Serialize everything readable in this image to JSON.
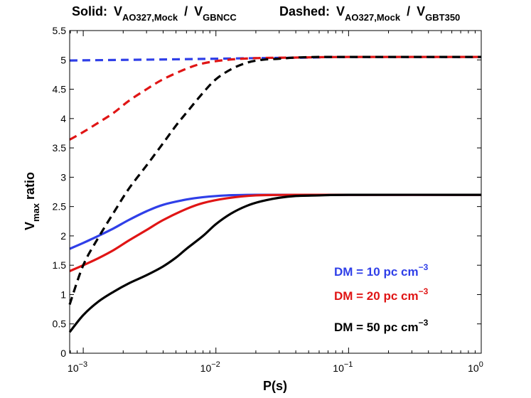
{
  "chart_data": {
    "type": "line",
    "x_scale": "log",
    "xlim": [
      0.00079,
      1
    ],
    "ylim": [
      0,
      5.5
    ],
    "titles": {
      "solid_label": "Solid:",
      "solid_V1": "V",
      "solid_V1_sub": "AO327,Mock",
      "solid_slash": "/",
      "solid_V2": "V",
      "solid_V2_sub": "GBNCC",
      "dashed_label": "Dashed:",
      "dashed_V1": "V",
      "dashed_V1_sub": "AO327,Mock",
      "dashed_slash": "/",
      "dashed_V2": "V",
      "dashed_V2_sub": "GBT350"
    },
    "xlabel": "P(s)",
    "ylabel_main": "V",
    "ylabel_sub": "max",
    "ylabel_rest": " ratio",
    "yticks": [
      {
        "value": 0,
        "label": "0"
      },
      {
        "value": 0.5,
        "label": "0.5"
      },
      {
        "value": 1,
        "label": "1"
      },
      {
        "value": 1.5,
        "label": "1.5"
      },
      {
        "value": 2,
        "label": "2"
      },
      {
        "value": 2.5,
        "label": "2.5"
      },
      {
        "value": 3,
        "label": "3"
      },
      {
        "value": 3.5,
        "label": "3.5"
      },
      {
        "value": 4,
        "label": "4"
      },
      {
        "value": 4.5,
        "label": "4.5"
      },
      {
        "value": 5,
        "label": "5"
      },
      {
        "value": 5.5,
        "label": "5.5"
      }
    ],
    "xticks": [
      {
        "value": 0.001,
        "base": "10",
        "exp": "−3"
      },
      {
        "value": 0.01,
        "base": "10",
        "exp": "−2"
      },
      {
        "value": 0.1,
        "base": "10",
        "exp": "−1"
      },
      {
        "value": 1,
        "base": "10",
        "exp": "0"
      }
    ],
    "legend": {
      "position": "bottom-right",
      "entries": [
        {
          "prefix": "DM = 10 pc cm",
          "exp": "−3",
          "color": "#2f3fe8"
        },
        {
          "prefix": "DM = 20 pc cm",
          "exp": "−3",
          "color": "#e01515"
        },
        {
          "prefix": "DM = 50 pc cm",
          "exp": "−3",
          "color": "#000000"
        }
      ]
    },
    "series": [
      {
        "name": "DM 10 solid",
        "style": "solid",
        "color": "#2f3fe8",
        "x": [
          0.00079,
          0.001,
          0.0013,
          0.0017,
          0.0022,
          0.003,
          0.004,
          0.006,
          0.008,
          0.012,
          0.02,
          0.04,
          0.1,
          1
        ],
        "y": [
          1.78,
          1.88,
          2.0,
          2.13,
          2.27,
          2.42,
          2.53,
          2.62,
          2.66,
          2.69,
          2.7,
          2.7,
          2.7,
          2.7
        ]
      },
      {
        "name": "DM 20 solid",
        "style": "solid",
        "color": "#e01515",
        "x": [
          0.00079,
          0.001,
          0.0013,
          0.0017,
          0.0022,
          0.003,
          0.004,
          0.006,
          0.008,
          0.012,
          0.02,
          0.04,
          0.1,
          1
        ],
        "y": [
          1.4,
          1.5,
          1.62,
          1.76,
          1.92,
          2.1,
          2.27,
          2.46,
          2.56,
          2.64,
          2.69,
          2.7,
          2.7,
          2.7
        ]
      },
      {
        "name": "DM 50 solid",
        "style": "solid",
        "color": "#000000",
        "x": [
          0.00079,
          0.001,
          0.0013,
          0.0017,
          0.0022,
          0.003,
          0.004,
          0.005,
          0.006,
          0.008,
          0.01,
          0.013,
          0.017,
          0.022,
          0.03,
          0.04,
          0.06,
          0.1,
          1
        ],
        "y": [
          0.36,
          0.65,
          0.88,
          1.05,
          1.19,
          1.33,
          1.48,
          1.63,
          1.78,
          2.0,
          2.2,
          2.38,
          2.51,
          2.59,
          2.65,
          2.68,
          2.69,
          2.7,
          2.7
        ]
      },
      {
        "name": "DM 10 dashed",
        "style": "dashed",
        "color": "#2f3fe8",
        "x": [
          0.00079,
          0.002,
          0.005,
          0.01,
          0.02,
          0.05,
          0.1,
          1
        ],
        "y": [
          4.99,
          5.0,
          5.01,
          5.02,
          5.03,
          5.04,
          5.05,
          5.05
        ]
      },
      {
        "name": "DM 20 dashed",
        "style": "dashed",
        "color": "#e01515",
        "x": [
          0.00079,
          0.001,
          0.0013,
          0.0017,
          0.0022,
          0.003,
          0.004,
          0.006,
          0.008,
          0.012,
          0.02,
          0.04,
          0.1,
          1
        ],
        "y": [
          3.64,
          3.77,
          3.93,
          4.1,
          4.3,
          4.5,
          4.67,
          4.85,
          4.94,
          5.0,
          5.03,
          5.04,
          5.05,
          5.05
        ]
      },
      {
        "name": "DM 50 dashed",
        "style": "dashed",
        "color": "#000000",
        "x": [
          0.00079,
          0.001,
          0.0013,
          0.0017,
          0.0022,
          0.003,
          0.004,
          0.005,
          0.006,
          0.008,
          0.01,
          0.013,
          0.017,
          0.022,
          0.03,
          0.04,
          0.06,
          0.1,
          1
        ],
        "y": [
          0.83,
          1.5,
          1.97,
          2.4,
          2.8,
          3.2,
          3.58,
          3.88,
          4.1,
          4.44,
          4.67,
          4.84,
          4.95,
          5.0,
          5.02,
          5.04,
          5.05,
          5.05,
          5.05
        ]
      }
    ]
  }
}
